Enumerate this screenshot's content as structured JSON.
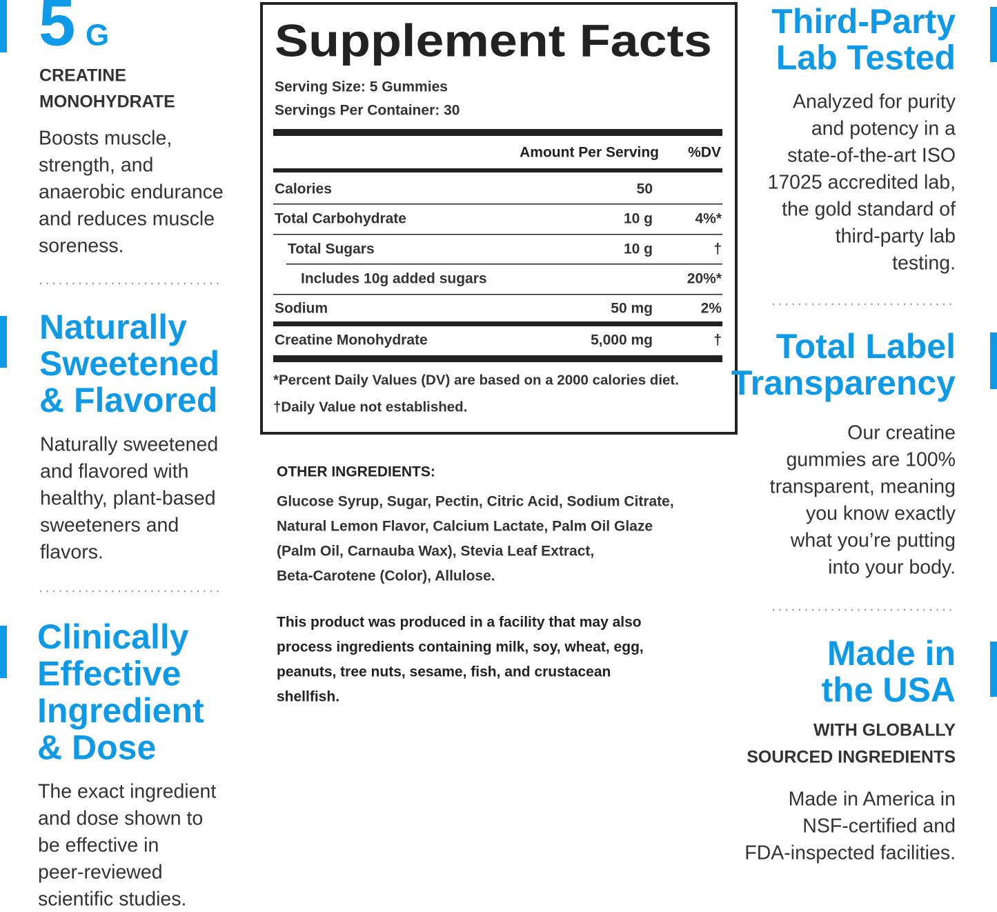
{
  "left_column": {
    "creatine": {
      "amount": "5",
      "unit": "G",
      "subtitle": [
        "CREATINE",
        "MONOHYDRATE"
      ],
      "body": [
        "Boosts muscle,",
        "strength, and",
        "anaerobic endurance",
        "and reduces muscle",
        "soreness."
      ]
    },
    "sweetened": {
      "heading": [
        "Naturally",
        "Sweetened",
        "& Flavored"
      ],
      "body": [
        "Naturally sweetened",
        "and flavored with",
        "healthy, plant-based",
        "sweeteners and",
        "flavors."
      ]
    },
    "clinical": {
      "heading": [
        "Clinically",
        "Effective",
        "Ingredient",
        "& Dose"
      ],
      "body": [
        "The exact ingredient",
        "and dose shown to",
        "be effective in",
        "peer-reviewed",
        "scientific studies."
      ]
    }
  },
  "supplement_facts": {
    "title": "Supplement Facts",
    "serving_size": "Serving Size: 5 Gummies",
    "servings_per_container": "Servings Per Container: 30",
    "column_headers": {
      "amount": "Amount Per Serving",
      "dv": "%DV"
    },
    "rows": [
      {
        "name": "Calories",
        "amount": "50"
      },
      {
        "name": "Total Carbohydrate",
        "amount": "10 g",
        "dv": "4%*"
      },
      {
        "name": "Total Sugars",
        "amount": "10 g",
        "dv": "†"
      },
      {
        "name": "Includes 10g added sugars",
        "dv": "20%*"
      },
      {
        "name": "Sodium",
        "amount": "50 mg",
        "dv": "2%"
      },
      {
        "name": "Creatine Monohydrate",
        "amount": "5,000 mg",
        "dv": "†"
      }
    ],
    "footnotes": [
      "*Percent Daily Values (DV) are based on a 2000 calories diet.",
      "†Daily Value not established."
    ]
  },
  "other_ingredients": {
    "label": "OTHER INGREDIENTS:",
    "lines": [
      "Glucose Syrup, Sugar, Pectin, Citric Acid, Sodium Citrate,",
      "Natural Lemon Flavor, Calcium Lactate, Palm Oil Glaze",
      "(Palm Oil, Carnauba Wax), Stevia Leaf Extract,",
      "Beta-Carotene (Color), Allulose."
    ]
  },
  "allergen_statement": [
    "This product was produced in a facility that may also",
    "process ingredients containing milk, soy, wheat, egg,",
    "peanuts, tree nuts, sesame, fish, and crustacean",
    "shellfish."
  ],
  "right_column": {
    "lab_tested": {
      "heading": [
        "Third-Party",
        "Lab Tested"
      ],
      "body": [
        "Analyzed for purity",
        "and potency in a",
        "state-of-the-art ISO",
        "17025 accredited lab,",
        "the gold standard of",
        "third-party lab",
        "testing."
      ]
    },
    "transparency": {
      "heading": [
        "Total Label",
        "Transparency"
      ],
      "body": [
        "Our creatine",
        "gummies are 100%",
        "transparent, meaning",
        "you know exactly",
        "what you’re putting",
        "into your body."
      ]
    },
    "made_in_usa": {
      "heading": [
        "Made in",
        "the USA"
      ],
      "subtitle": [
        "WITH GLOBALLY",
        "SOURCED INGREDIENTS"
      ],
      "body": [
        "Made in America in",
        "NSF-certified and",
        "FDA-inspected facilities."
      ]
    }
  }
}
